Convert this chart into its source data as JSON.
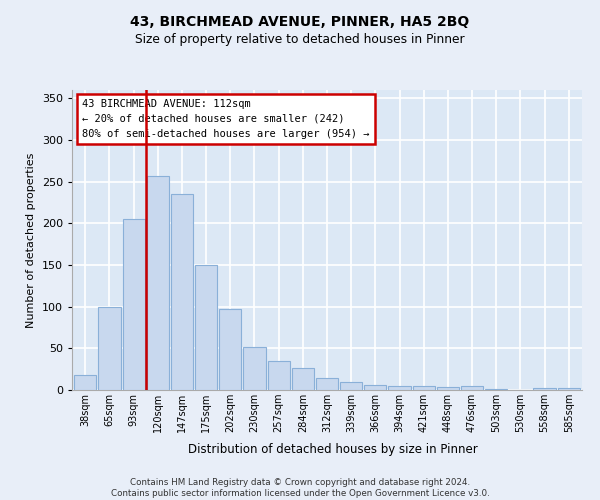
{
  "title_line1": "43, BIRCHMEAD AVENUE, PINNER, HA5 2BQ",
  "title_line2": "Size of property relative to detached houses in Pinner",
  "xlabel": "Distribution of detached houses by size in Pinner",
  "ylabel": "Number of detached properties",
  "categories": [
    "38sqm",
    "65sqm",
    "93sqm",
    "120sqm",
    "147sqm",
    "175sqm",
    "202sqm",
    "230sqm",
    "257sqm",
    "284sqm",
    "312sqm",
    "339sqm",
    "366sqm",
    "394sqm",
    "421sqm",
    "448sqm",
    "476sqm",
    "503sqm",
    "530sqm",
    "558sqm",
    "585sqm"
  ],
  "values": [
    18,
    100,
    205,
    257,
    235,
    150,
    97,
    52,
    35,
    26,
    15,
    10,
    6,
    5,
    5,
    4,
    5,
    1,
    0,
    3,
    3
  ],
  "bar_color": "#c8d8ee",
  "bar_edge_color": "#8ab0d8",
  "background_color": "#dce8f5",
  "fig_background_color": "#e8eef8",
  "grid_color": "#ffffff",
  "vline_x": 2.5,
  "vline_color": "#cc0000",
  "annotation_text": "43 BIRCHMEAD AVENUE: 112sqm\n← 20% of detached houses are smaller (242)\n80% of semi-detached houses are larger (954) →",
  "annotation_box_facecolor": "#ffffff",
  "annotation_box_edgecolor": "#cc0000",
  "footer_line1": "Contains HM Land Registry data © Crown copyright and database right 2024.",
  "footer_line2": "Contains public sector information licensed under the Open Government Licence v3.0.",
  "ylim": [
    0,
    360
  ],
  "yticks": [
    0,
    50,
    100,
    150,
    200,
    250,
    300,
    350
  ]
}
